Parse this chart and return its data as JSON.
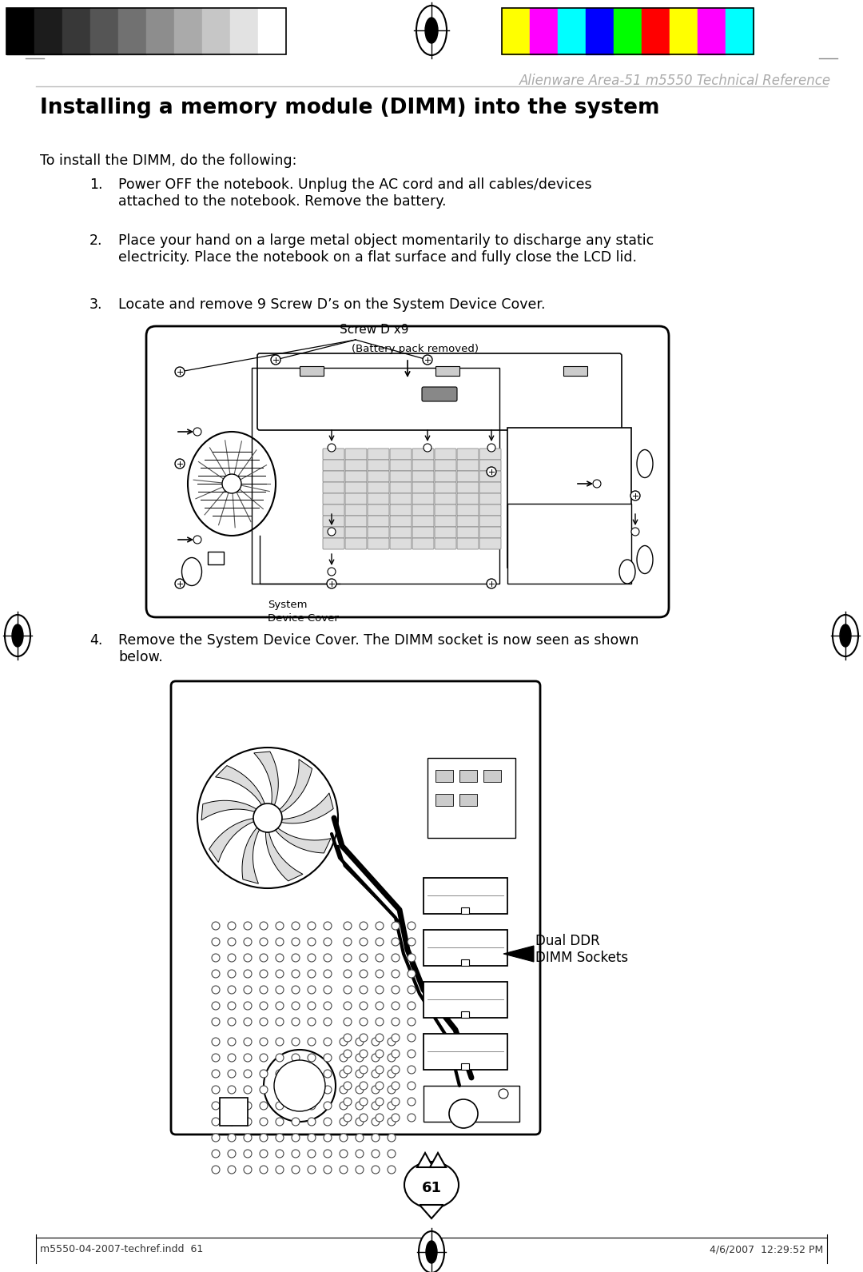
{
  "page_title": "Alienware Area-51 m5550 Technical Reference",
  "section_title": "Installing a memory module (DIMM) into the system",
  "intro_text": "To install the DIMM, do the following:",
  "steps": [
    "Power OFF the notebook. Unplug the AC cord and all cables/devices\nattached to the notebook. Remove the battery.",
    "Place your hand on a large metal object momentarily to discharge any static\nelectricity. Place the notebook on a flat surface and fully close the LCD lid.",
    "Locate and remove 9 Screw D’s on the System Device Cover."
  ],
  "step4_text": "Remove the System Device Cover. The DIMM socket is now seen as shown\nbelow.",
  "label_screw": "Screw D x9",
  "label_battery": "(Battery pack removed)",
  "label_device_cover": "System\nDevice Cover",
  "label_dimm": "Dual DDR\nDIMM Sockets",
  "footer_left": "m5550-04-2007-techref.indd  61",
  "footer_right": "4/6/2007  12:29:52 PM",
  "page_number": "61",
  "bg_color": "#ffffff",
  "text_color": "#000000",
  "title_gray": "#aaaaaa",
  "line_color": "#cccccc",
  "bar_colors_left": [
    "#000000",
    "#1c1c1c",
    "#383838",
    "#555555",
    "#717171",
    "#8d8d8d",
    "#aaaaaa",
    "#c6c6c6",
    "#e2e2e2",
    "#ffffff"
  ],
  "bar_colors_right": [
    "#ffff00",
    "#ff00ff",
    "#00ffff",
    "#0000ff",
    "#00ff00",
    "#ff0000",
    "#ffff00",
    "#ff00ff",
    "#00ffff"
  ]
}
